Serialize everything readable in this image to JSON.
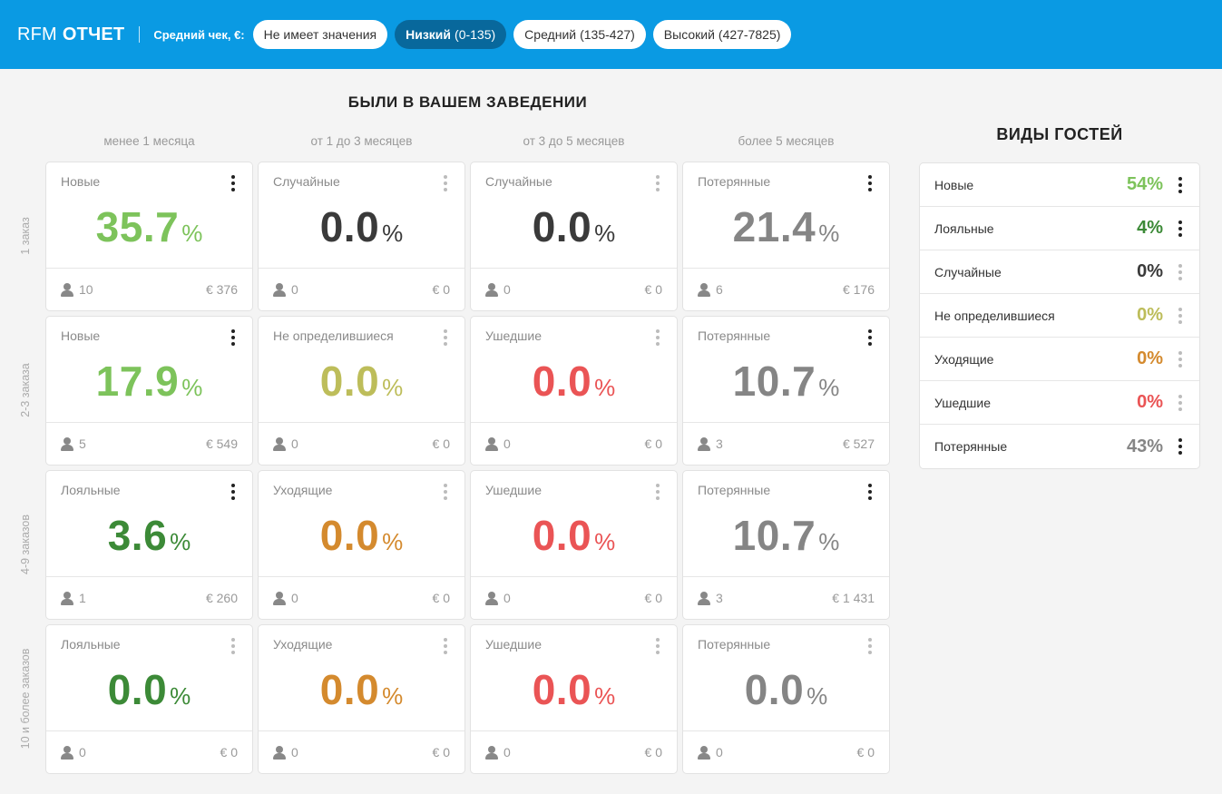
{
  "header": {
    "brand_light": "RFM",
    "brand_bold": "ОТЧЕТ",
    "filter_label": "Средний чек, €:",
    "filters": [
      {
        "name": "Не имеет значения",
        "range": "",
        "active": false
      },
      {
        "name": "Низкий",
        "range": "(0-135)",
        "active": true
      },
      {
        "name": "Средний",
        "range": "(135-427)",
        "active": false
      },
      {
        "name": "Высокий",
        "range": "(427-7825)",
        "active": false
      }
    ]
  },
  "matrix": {
    "title": "БЫЛИ В ВАШЕМ ЗАВЕДЕНИИ",
    "columns": [
      "менее 1 месяца",
      "от 1 до 3 месяцев",
      "от 3 до 5 месяцев",
      "более 5 месяцев"
    ],
    "rows": [
      "1 заказ",
      "2-3 заказа",
      "4-9 заказов",
      "10 и более заказов"
    ],
    "pct_symbol": "%",
    "cells": [
      [
        {
          "name": "Новые",
          "value": "35.7",
          "users": "10",
          "amount": "€ 376",
          "color": "#7dc35b",
          "active": true
        },
        {
          "name": "Случайные",
          "value": "0.0",
          "users": "0",
          "amount": "€ 0",
          "color": "#3a3a3a",
          "active": false
        },
        {
          "name": "Случайные",
          "value": "0.0",
          "users": "0",
          "amount": "€ 0",
          "color": "#3a3a3a",
          "active": false
        },
        {
          "name": "Потерянные",
          "value": "21.4",
          "users": "6",
          "amount": "€ 176",
          "color": "#858585",
          "active": true
        }
      ],
      [
        {
          "name": "Новые",
          "value": "17.9",
          "users": "5",
          "amount": "€ 549",
          "color": "#7dc35b",
          "active": true
        },
        {
          "name": "Не определившиеся",
          "value": "0.0",
          "users": "0",
          "amount": "€ 0",
          "color": "#bdbd5a",
          "active": false
        },
        {
          "name": "Ушедшие",
          "value": "0.0",
          "users": "0",
          "amount": "€ 0",
          "color": "#ea5455",
          "active": false
        },
        {
          "name": "Потерянные",
          "value": "10.7",
          "users": "3",
          "amount": "€ 527",
          "color": "#858585",
          "active": true
        }
      ],
      [
        {
          "name": "Лояльные",
          "value": "3.6",
          "users": "1",
          "amount": "€ 260",
          "color": "#3c8a37",
          "active": true
        },
        {
          "name": "Уходящие",
          "value": "0.0",
          "users": "0",
          "amount": "€ 0",
          "color": "#d48a2e",
          "active": false
        },
        {
          "name": "Ушедшие",
          "value": "0.0",
          "users": "0",
          "amount": "€ 0",
          "color": "#ea5455",
          "active": false
        },
        {
          "name": "Потерянные",
          "value": "10.7",
          "users": "3",
          "amount": "€ 1 431",
          "color": "#858585",
          "active": true
        }
      ],
      [
        {
          "name": "Лояльные",
          "value": "0.0",
          "users": "0",
          "amount": "€ 0",
          "color": "#3c8a37",
          "active": false
        },
        {
          "name": "Уходящие",
          "value": "0.0",
          "users": "0",
          "amount": "€ 0",
          "color": "#d48a2e",
          "active": false
        },
        {
          "name": "Ушедшие",
          "value": "0.0",
          "users": "0",
          "amount": "€ 0",
          "color": "#ea5455",
          "active": false
        },
        {
          "name": "Потерянные",
          "value": "0.0",
          "users": "0",
          "amount": "€ 0",
          "color": "#858585",
          "active": false
        }
      ]
    ]
  },
  "guest_types": {
    "title": "ВИДЫ ГОСТЕЙ",
    "items": [
      {
        "name": "Новые",
        "value": "54%",
        "color": "#7dc35b",
        "active": true
      },
      {
        "name": "Лояльные",
        "value": "4%",
        "color": "#3c8a37",
        "active": true
      },
      {
        "name": "Случайные",
        "value": "0%",
        "color": "#3a3a3a",
        "active": false
      },
      {
        "name": "Не определившиеся",
        "value": "0%",
        "color": "#bdbd5a",
        "active": false
      },
      {
        "name": "Уходящие",
        "value": "0%",
        "color": "#d48a2e",
        "active": false
      },
      {
        "name": "Ушедшие",
        "value": "0%",
        "color": "#ea5455",
        "active": false
      },
      {
        "name": "Потерянные",
        "value": "43%",
        "color": "#858585",
        "active": true
      }
    ]
  }
}
